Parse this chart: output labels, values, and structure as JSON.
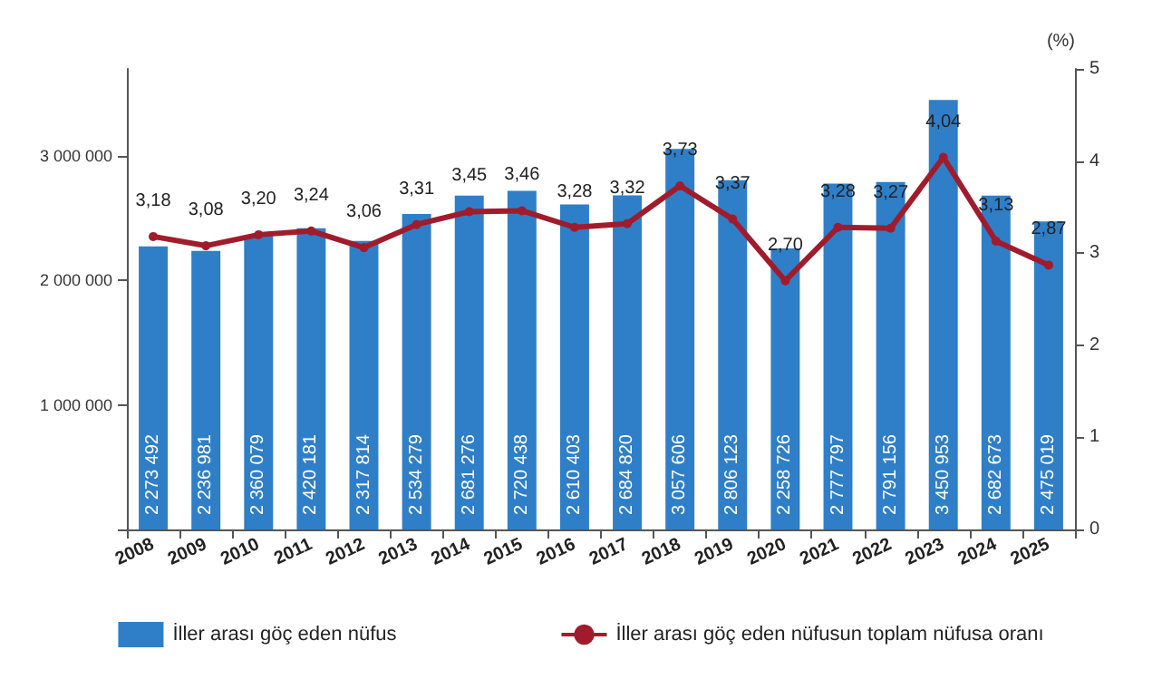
{
  "chart_data": {
    "type": "bar",
    "categories": [
      "2008",
      "2009",
      "2010",
      "2011",
      "2012",
      "2013",
      "2014",
      "2015",
      "2016",
      "2017",
      "2018",
      "2019",
      "2020",
      "2021",
      "2022",
      "2023",
      "2024",
      "2025"
    ],
    "series": [
      {
        "name": "İller arası göç eden nüfus",
        "color": "#2f7fc8",
        "values": [
          2273492,
          2236981,
          2360079,
          2420181,
          2317814,
          2534279,
          2681276,
          2720438,
          2610403,
          2684820,
          3057606,
          2806123,
          2258726,
          2777797,
          2791156,
          3450953,
          2682673,
          2475019
        ],
        "value_labels": [
          "2 273 492",
          "2 236 981",
          "2 360 079",
          "2 420 181",
          "2 317 814",
          "2 534 279",
          "2 681 276",
          "2 720 438",
          "2 610 403",
          "2 684 820",
          "3 057 606",
          "2 806 123",
          "2 258 726",
          "2 777 797",
          "2 791 156",
          "3 450 953",
          "2 682 673",
          "2 475 019"
        ]
      },
      {
        "name": "İller arası göç eden nüfusun toplam nüfusa oranı",
        "type": "line",
        "axis": "y2",
        "color": "#a01c2c",
        "values": [
          3.18,
          3.08,
          3.2,
          3.24,
          3.06,
          3.31,
          3.45,
          3.46,
          3.28,
          3.32,
          3.73,
          3.37,
          2.7,
          3.28,
          3.27,
          4.04,
          3.13,
          2.87
        ],
        "value_labels": [
          "3,18",
          "3,08",
          "3,20",
          "3,24",
          "3,06",
          "3,31",
          "3,45",
          "3,46",
          "3,28",
          "3,32",
          "3,73",
          "3,37",
          "2,70",
          "3,28",
          "3,27",
          "4,04",
          "3,13",
          "2,87"
        ]
      }
    ],
    "ylim": [
      0,
      3700000
    ],
    "yticks": [
      {
        "value": 0,
        "label": null
      },
      {
        "value": 1000000,
        "label": "1 000 000"
      },
      {
        "value": 2000000,
        "label": "2 000 000"
      },
      {
        "value": 3000000,
        "label": "3 000 000"
      }
    ],
    "y2label": "(%)",
    "y2lim": [
      0,
      5
    ],
    "y2ticks": [
      0,
      1,
      2,
      3,
      4,
      5
    ],
    "legend": "bottom",
    "grid": false,
    "marker": "circle",
    "line_style": "solid"
  }
}
